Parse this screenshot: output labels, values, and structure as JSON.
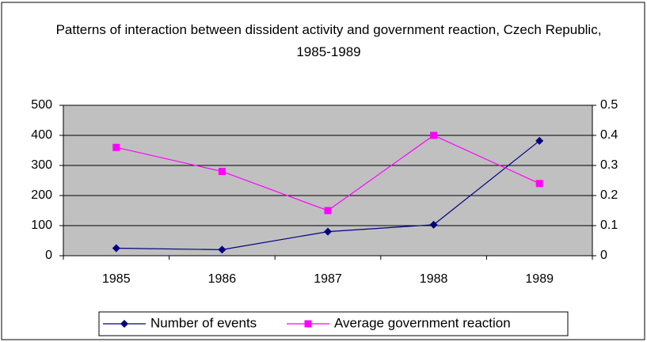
{
  "chart_data": {
    "type": "line",
    "title": "Patterns of interaction between dissident activity and government reaction, Czech Republic, 1985-1989",
    "categories": [
      "1985",
      "1986",
      "1987",
      "1988",
      "1989"
    ],
    "series": [
      {
        "name": "Number of events",
        "color": "#000080",
        "marker": "diamond",
        "values": [
          25,
          20,
          80,
          103,
          382
        ]
      },
      {
        "name": "Average government reaction",
        "color": "#ff00ff",
        "marker": "square",
        "axis": "y2",
        "values": [
          0.36,
          0.28,
          0.15,
          0.4,
          0.24
        ]
      }
    ],
    "ylim": [
      0,
      500
    ],
    "yticks": [
      0,
      100,
      200,
      300,
      400,
      500
    ],
    "y2lim": [
      0,
      0.5
    ],
    "y2ticks": [
      0,
      0.1,
      0.2,
      0.3,
      0.4,
      0.5
    ],
    "grid": true,
    "legend": "bottom",
    "plot_background": "#c0c0c0"
  }
}
